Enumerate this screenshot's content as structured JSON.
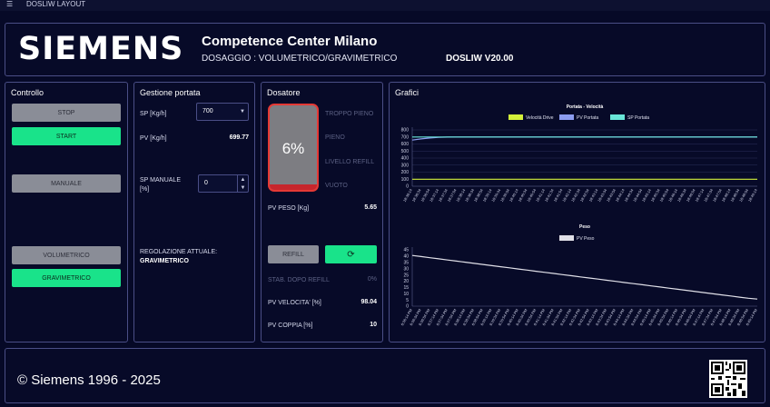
{
  "app": {
    "title": "DOSLIW LAYOUT",
    "menu_icon": "hamburger-menu-icon"
  },
  "header": {
    "logo": "SIEMENS",
    "company": "Competence Center Milano",
    "subtitle": "DOSAGGIO : VOLUMETRICO/GRAVIMETRICO",
    "version": "DOSLIW V20.00"
  },
  "controllo": {
    "title": "Controllo",
    "stop": "STOP",
    "start": "START",
    "manuale": "MANUALE",
    "volumetrico": "VOLUMETRICO",
    "gravimetrico": "GRAVIMETRICO"
  },
  "gestione": {
    "title": "Gestione portata",
    "sp_label": "SP [Kg/h]",
    "sp_value": "700",
    "pv_label": "PV [Kg/h]",
    "pv_value": "699.77",
    "sp_manuale_label_1": "SP MANUALE",
    "sp_manuale_label_2": "[%]",
    "sp_manuale_value": "0",
    "regolazione_label": "REGOLAZIONE ATTUALE:",
    "regolazione_value": "GRAVIMETRICO"
  },
  "dosatore": {
    "title": "Dosatore",
    "level_percent": "6%",
    "level_fraction": 0.06,
    "troppo_pieno": "TROPPO PIENO",
    "pieno": "PIENO",
    "livello_refill": "LIVELLO REFILL",
    "vuoto": "VUOTO",
    "pv_peso_label": "PV PESO [Kg]",
    "pv_peso_value": "5.65",
    "refill": "REFILL",
    "refresh_icon": "refresh-icon",
    "stab_label": "STAB. DOPO REFILL",
    "stab_value": "0%",
    "pv_velocita_label": "PV VELOCITA' [%]",
    "pv_velocita_value": "98.04",
    "pv_coppia_label": "PV COPPIA [%]",
    "pv_coppia_value": "10"
  },
  "grafici": {
    "title": "Grafici"
  },
  "footer": {
    "copyright": "© Siemens 1996 - 2025",
    "qr_icon": "qr-code-icon"
  },
  "colors": {
    "background": "#060927",
    "panel_border": "#4a4e86",
    "green": "#19e38a",
    "gray_button": "#8a8d97",
    "tank_alarm": "#e53935",
    "velocita": "#d4f03a",
    "pv_portata": "#8c9cf0",
    "sp_portata": "#69e6d8",
    "pv_peso": "#e0e0e8"
  },
  "chart_data": [
    {
      "type": "line",
      "title": "Portata - Velocità",
      "series": [
        {
          "name": "Velocità Drive",
          "values": [
            100,
            100,
            100,
            100,
            100,
            100,
            100,
            100,
            100,
            100,
            100,
            100,
            100,
            100,
            100,
            100,
            100,
            100,
            100,
            100,
            100,
            100,
            100,
            100,
            100,
            100,
            100,
            100,
            100,
            100,
            100,
            100,
            100,
            100,
            100,
            100,
            100,
            100,
            100,
            100
          ]
        },
        {
          "name": "PV Portata",
          "values": [
            655,
            672,
            685,
            694,
            698,
            700,
            700,
            700,
            700,
            700,
            700,
            700,
            700,
            700,
            700,
            700,
            700,
            700,
            700,
            700,
            700,
            700,
            700,
            700,
            700,
            700,
            700,
            700,
            700,
            700,
            700,
            700,
            700,
            700,
            700,
            700,
            700,
            700,
            700,
            700
          ]
        },
        {
          "name": "SP Portata",
          "values": [
            700,
            700,
            700,
            700,
            700,
            700,
            700,
            700,
            700,
            700,
            700,
            700,
            700,
            700,
            700,
            700,
            700,
            700,
            700,
            700,
            700,
            700,
            700,
            700,
            700,
            700,
            700,
            700,
            700,
            700,
            700,
            700,
            700,
            700,
            700,
            700,
            700,
            700,
            700,
            700
          ]
        }
      ],
      "x": [
        "18:36:14",
        "18:36:34",
        "18:36:54",
        "18:37:14",
        "18:37:34",
        "18:37:54",
        "18:38:14",
        "18:38:34",
        "18:38:54",
        "18:39:14",
        "18:39:34",
        "18:39:54",
        "18:40:14",
        "18:40:34",
        "18:40:54",
        "18:41:14",
        "18:41:34",
        "18:41:54",
        "18:42:14",
        "18:42:34",
        "18:42:54",
        "18:43:14",
        "18:43:34",
        "18:43:54",
        "18:44:14",
        "18:44:34",
        "18:44:54",
        "18:45:14",
        "18:45:34",
        "18:45:54",
        "18:46:14",
        "18:46:34",
        "18:46:54",
        "18:47:14",
        "18:47:34",
        "18:47:54",
        "18:48:14",
        "18:48:34",
        "18:48:54",
        "18:49:14"
      ],
      "yticks": [
        0,
        100,
        200,
        300,
        400,
        500,
        600,
        700,
        800
      ],
      "ylim": [
        0,
        800
      ],
      "legend": "top-center",
      "grid": true
    },
    {
      "type": "line",
      "title": "Peso",
      "series": [
        {
          "name": "PV Peso",
          "values": [
            40.5,
            39.6,
            38.7,
            37.8,
            36.9,
            36.0,
            35.1,
            34.2,
            33.3,
            32.4,
            31.5,
            30.6,
            29.7,
            28.8,
            27.9,
            27.0,
            26.1,
            25.2,
            24.3,
            23.4,
            22.5,
            21.6,
            20.7,
            19.8,
            18.9,
            18.0,
            17.1,
            16.2,
            15.3,
            14.4,
            13.5,
            12.6,
            11.7,
            10.8,
            9.9,
            9.0,
            8.1,
            7.2,
            6.3,
            5.65
          ]
        }
      ],
      "x": [
        "6:36:14 PM",
        "6:36:34 PM",
        "6:36:54 PM",
        "6:37:14 PM",
        "6:37:34 PM",
        "6:37:54 PM",
        "6:38:14 PM",
        "6:38:34 PM",
        "6:38:54 PM",
        "6:39:14 PM",
        "6:39:34 PM",
        "6:39:54 PM",
        "6:40:14 PM",
        "6:40:34 PM",
        "6:40:54 PM",
        "6:41:14 PM",
        "6:41:34 PM",
        "6:41:54 PM",
        "6:42:14 PM",
        "6:42:34 PM",
        "6:42:54 PM",
        "6:43:14 PM",
        "6:43:34 PM",
        "6:43:54 PM",
        "6:44:14 PM",
        "6:44:34 PM",
        "6:44:54 PM",
        "6:45:14 PM",
        "6:45:34 PM",
        "6:45:54 PM",
        "6:46:14 PM",
        "6:46:34 PM",
        "6:46:54 PM",
        "6:47:14 PM",
        "6:47:34 PM",
        "6:47:54 PM",
        "6:48:14 PM",
        "6:48:34 PM",
        "6:48:54 PM",
        "6:49:14 PM"
      ],
      "yticks": [
        0,
        5,
        10,
        15,
        20,
        25,
        30,
        35,
        40,
        45
      ],
      "ylim": [
        0,
        45
      ],
      "legend": "top-center",
      "grid": false
    }
  ]
}
